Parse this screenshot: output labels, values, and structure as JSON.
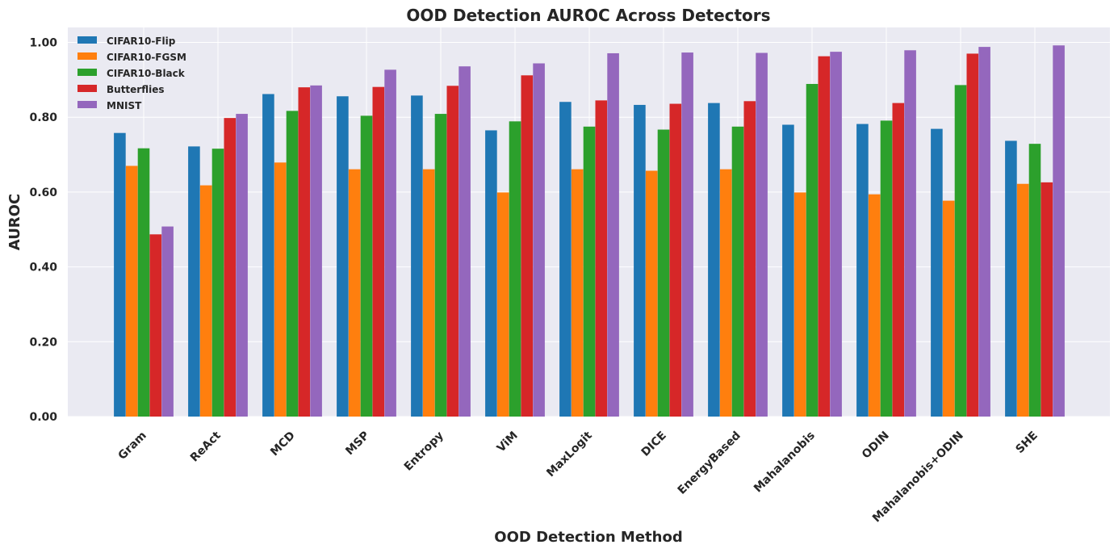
{
  "chart_data": {
    "type": "bar",
    "title": "OOD Detection AUROC Across Detectors",
    "xlabel": "OOD Detection Method",
    "ylabel": "AUROC",
    "ylim": [
      0,
      1.04
    ],
    "yticks": [
      "0.00",
      "0.20",
      "0.40",
      "0.60",
      "0.80",
      "1.00"
    ],
    "ytick_values": [
      0,
      0.2,
      0.4,
      0.6,
      0.8,
      1.0
    ],
    "legend_position": "top-left",
    "grid": true,
    "categories": [
      "Gram",
      "ReAct",
      "MCD",
      "MSP",
      "Entropy",
      "ViM",
      "MaxLogit",
      "DICE",
      "EnergyBased",
      "Mahalanobis",
      "ODIN",
      "Mahalanobis+ODIN",
      "SHE"
    ],
    "series": [
      {
        "name": "CIFAR10-Flip",
        "color": "#1f77b4",
        "values": [
          0.758,
          0.722,
          0.862,
          0.856,
          0.858,
          0.765,
          0.841,
          0.833,
          0.838,
          0.78,
          0.782,
          0.769,
          0.737
        ]
      },
      {
        "name": "CIFAR10-FGSM",
        "color": "#ff7f0e",
        "values": [
          0.67,
          0.618,
          0.679,
          0.661,
          0.661,
          0.599,
          0.661,
          0.657,
          0.661,
          0.599,
          0.594,
          0.577,
          0.622
        ]
      },
      {
        "name": "CIFAR10-Black",
        "color": "#2ca02c",
        "values": [
          0.717,
          0.716,
          0.817,
          0.804,
          0.809,
          0.789,
          0.775,
          0.767,
          0.775,
          0.889,
          0.791,
          0.886,
          0.729
        ]
      },
      {
        "name": "Butterflies",
        "color": "#d62728",
        "values": [
          0.487,
          0.798,
          0.88,
          0.881,
          0.884,
          0.912,
          0.845,
          0.836,
          0.843,
          0.963,
          0.838,
          0.97,
          0.626
        ]
      },
      {
        "name": "MNIST",
        "color": "#9467bd",
        "values": [
          0.508,
          0.809,
          0.885,
          0.927,
          0.936,
          0.944,
          0.971,
          0.973,
          0.972,
          0.975,
          0.979,
          0.988,
          0.992
        ]
      }
    ]
  }
}
